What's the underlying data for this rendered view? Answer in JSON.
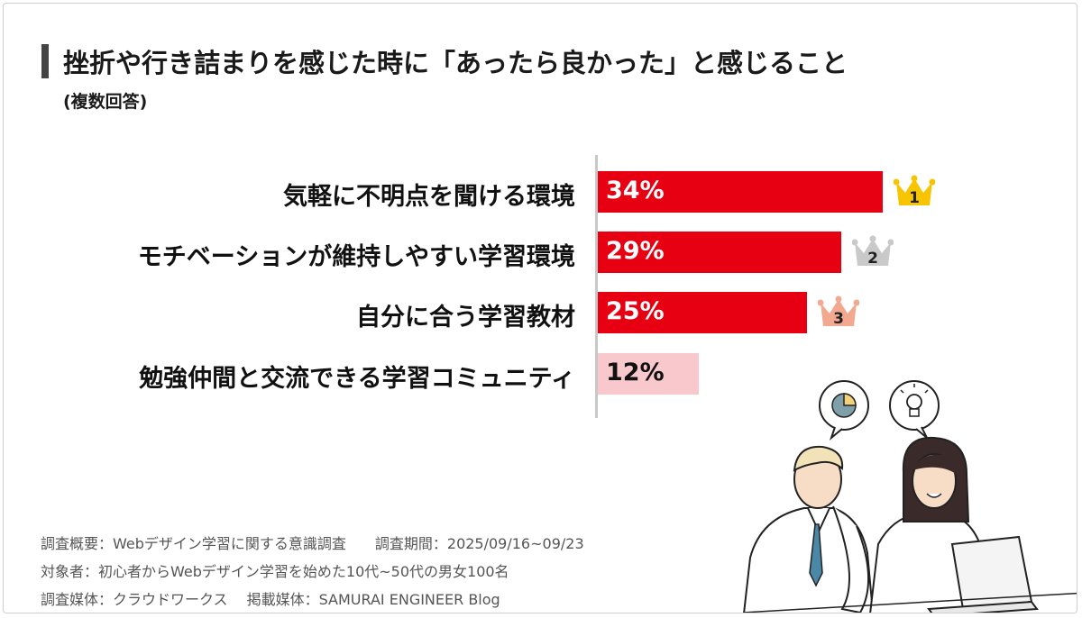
{
  "title": "挫折や行き詰まりを感じた時に「あったら良かった」と感じること",
  "subtitle": "(複数回答)",
  "chart_data": {
    "type": "bar",
    "orientation": "horizontal",
    "categories": [
      "気軽に不明点を聞ける環境",
      "モチベーションが維持しやすい学習環境",
      "自分に合う学習教材",
      "勉強仲間と交流できる学習コミュニティ"
    ],
    "values": [
      34,
      29,
      25,
      12
    ],
    "value_labels": [
      "34%",
      "29%",
      "25%",
      "12%"
    ],
    "bar_colors": [
      "#e60012",
      "#e60012",
      "#e60012",
      "#f8c8cc"
    ],
    "value_label_colors": [
      "#ffffff",
      "#ffffff",
      "#ffffff",
      "#111111"
    ],
    "xlim": [
      0,
      50
    ],
    "ranks": [
      {
        "rank": "1",
        "color": "#f6c400"
      },
      {
        "rank": "2",
        "color": "#c9c9c9"
      },
      {
        "rank": "3",
        "color": "#f3a98f"
      }
    ]
  },
  "notes": [
    "調査概要：Webデザイン学習に関する意識調査　　調査期間：2025/09/16~09/23",
    "対象者：初心者からWebデザイン学習を始めた10代~50代の男女100名",
    "調査媒体：クラウドワークス　 掲載媒体：SAMURAI ENGINEER Blog"
  ]
}
